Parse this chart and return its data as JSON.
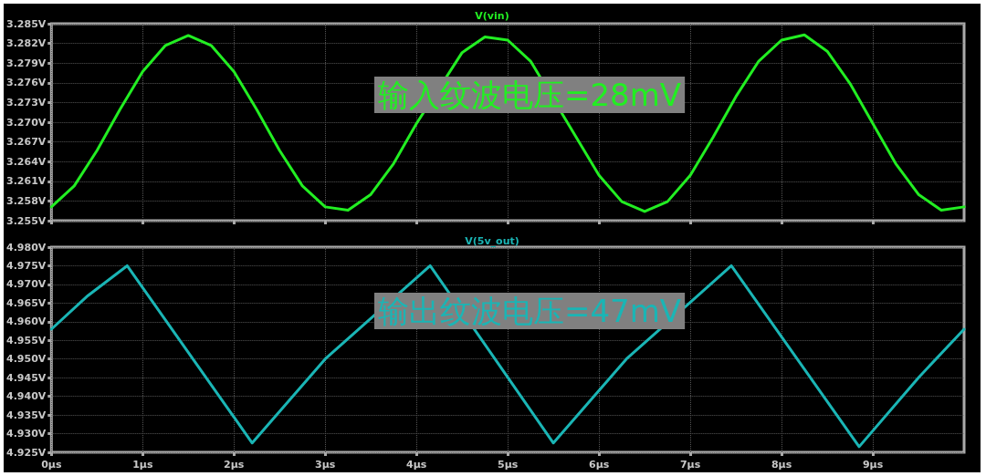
{
  "chart_data": [
    {
      "type": "line",
      "title": "V(vin)",
      "annotations": [
        "输入纹波电压=28mV"
      ],
      "grid": true,
      "tick_labels": "y",
      "marker": "none",
      "x": [
        0,
        0.25,
        0.5,
        0.75,
        1,
        1.25,
        1.5,
        1.75,
        2,
        2.25,
        2.5,
        2.75,
        3,
        3.25,
        3.5,
        3.75,
        4,
        4.25,
        4.5,
        4.75,
        5,
        5.25,
        5.5,
        5.75,
        6,
        6.25,
        6.5,
        6.75,
        7,
        7.25,
        7.5,
        7.75,
        8,
        8.25,
        8.5,
        8.75,
        9,
        9.25,
        9.5,
        9.75,
        10
      ],
      "series": [
        {
          "color": "#22ee22",
          "values": [
            3.2571,
            3.2603,
            3.2657,
            3.2719,
            3.2777,
            3.2817,
            3.2832,
            3.2817,
            3.2777,
            3.2719,
            3.2657,
            3.2603,
            3.2571,
            3.2566,
            3.259,
            3.2637,
            3.2698,
            null,
            3.2806,
            3.283,
            3.2825,
            3.2793,
            null,
            3.2677,
            3.2619,
            3.2579,
            3.2564,
            3.2579,
            3.2619,
            3.2677,
            3.2739,
            3.2793,
            3.2825,
            3.2833,
            3.2808,
            3.2759,
            3.2698,
            3.2637,
            3.259,
            3.2566,
            3.2571
          ]
        }
      ],
      "xlim": [
        0,
        10
      ],
      "xticks": [
        {
          "value": 0,
          "label": null
        },
        {
          "value": 1,
          "label": null
        },
        {
          "value": 2,
          "label": null
        },
        {
          "value": 3,
          "label": null
        },
        {
          "value": 4,
          "label": null
        },
        {
          "value": 5,
          "label": null
        },
        {
          "value": 6,
          "label": null
        },
        {
          "value": 7,
          "label": null
        },
        {
          "value": 8,
          "label": null
        },
        {
          "value": 9,
          "label": null
        }
      ],
      "ylim": [
        3.255,
        3.285
      ],
      "yticks": [
        {
          "value": 3.255,
          "label": "3.255V"
        },
        {
          "value": 3.258,
          "label": "3.258V"
        },
        {
          "value": 3.261,
          "label": "3.261V"
        },
        {
          "value": 3.264,
          "label": "3.264V"
        },
        {
          "value": 3.267,
          "label": "3.267V"
        },
        {
          "value": 3.27,
          "label": "3.270V"
        },
        {
          "value": 3.273,
          "label": "3.273V"
        },
        {
          "value": 3.276,
          "label": "3.276V"
        },
        {
          "value": 3.279,
          "label": "3.279V"
        },
        {
          "value": 3.282,
          "label": "3.282V"
        },
        {
          "value": 3.285,
          "label": "3.285V"
        }
      ]
    },
    {
      "type": "line",
      "title": "V(5v_out)",
      "annotations": [
        "输出纹波电压=47mV"
      ],
      "grid": true,
      "marker": "none",
      "x": [
        0,
        0.4,
        0.83,
        2.2,
        3.0,
        4.15,
        5.5,
        6.3,
        7.45,
        8.85,
        9.5,
        10
      ],
      "series": [
        {
          "color": "#1ab5b5",
          "values": [
            4.958,
            4.967,
            4.975,
            4.9275,
            4.95,
            4.975,
            4.9275,
            4.95,
            4.975,
            4.9265,
            4.945,
            4.958
          ]
        }
      ],
      "xlim": [
        0,
        10
      ],
      "xticks": [
        {
          "value": 0,
          "label": "0µs"
        },
        {
          "value": 1,
          "label": "1µs"
        },
        {
          "value": 2,
          "label": "2µs"
        },
        {
          "value": 3,
          "label": "3µs"
        },
        {
          "value": 4,
          "label": "4µs"
        },
        {
          "value": 5,
          "label": "5µs"
        },
        {
          "value": 6,
          "label": "6µs"
        },
        {
          "value": 7,
          "label": "7µs"
        },
        {
          "value": 8,
          "label": "8µs"
        },
        {
          "value": 9,
          "label": "9µs"
        }
      ],
      "ylim": [
        4.925,
        4.98
      ],
      "yticks": [
        {
          "value": 4.925,
          "label": "4.925V"
        },
        {
          "value": 4.93,
          "label": "4.930V"
        },
        {
          "value": 4.935,
          "label": "4.935V"
        },
        {
          "value": 4.94,
          "label": "4.940V"
        },
        {
          "value": 4.945,
          "label": "4.945V"
        },
        {
          "value": 4.95,
          "label": "4.950V"
        },
        {
          "value": 4.955,
          "label": "4.955V"
        },
        {
          "value": 4.96,
          "label": "4.960V"
        },
        {
          "value": 4.965,
          "label": "4.965V"
        },
        {
          "value": 4.97,
          "label": "4.970V"
        },
        {
          "value": 4.975,
          "label": "4.975V"
        },
        {
          "value": 4.98,
          "label": "4.980V"
        }
      ]
    }
  ]
}
